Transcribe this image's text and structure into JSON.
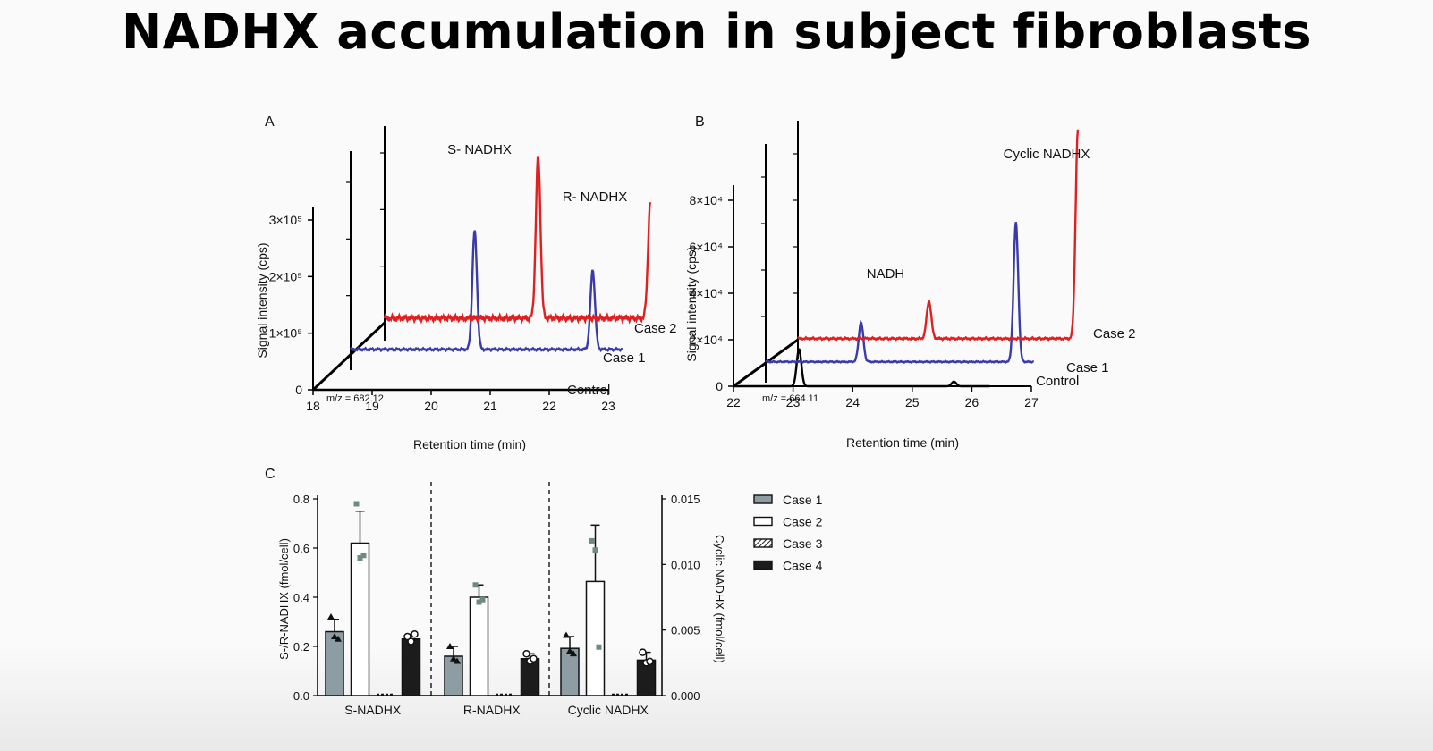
{
  "slide": {
    "title": "NADHX accumulation in subject fibroblasts"
  },
  "panels": {
    "A": {
      "letter": "A",
      "ylabel": "Signal intensity (cps)",
      "xlabel": "Retention time (min)",
      "y_ticks": [
        "0",
        "1×10⁵",
        "2×10⁵",
        "3×10⁵"
      ],
      "x_ticks": [
        "18",
        "19",
        "20",
        "21",
        "22",
        "23"
      ],
      "mz": "m/z = 682.12",
      "peak_labels": [
        "S- NADHX",
        "R- NADHX"
      ],
      "trace_labels": [
        "Case 2",
        "Case 1",
        "Control"
      ]
    },
    "B": {
      "letter": "B",
      "ylabel": "Signal intensity (cps)",
      "xlabel": "Retention time (min)",
      "y_ticks": [
        "0",
        "2×10⁴",
        "4×10⁴",
        "6×10⁴",
        "8×10⁴"
      ],
      "x_ticks": [
        "22",
        "23",
        "24",
        "25",
        "26",
        "27"
      ],
      "mz": "m/z = 664.11",
      "peak_labels": [
        "Cyclic NADHX",
        "NADH"
      ],
      "trace_labels": [
        "Case 2",
        "Case 1",
        "Control"
      ]
    },
    "C": {
      "letter": "C",
      "ylabel_left": "S-/R-NADHX (fmol/cell)",
      "ylabel_right": "Cyclic NADHX (fmol/cell)",
      "y_ticks_left": [
        "0.0",
        "0.2",
        "0.4",
        "0.6",
        "0.8"
      ],
      "y_ticks_right": [
        "0.000",
        "0.005",
        "0.010",
        "0.015"
      ],
      "group_labels": [
        "S-NADHX",
        "R-NADHX",
        "Cyclic NADHX"
      ],
      "legend": [
        "Case 1",
        "Case 2",
        "Case 3",
        "Case 4"
      ]
    }
  },
  "chart_data": [
    {
      "type": "line",
      "panel": "A",
      "xlabel": "Retention time (min)",
      "ylabel": "Signal intensity (cps)",
      "xlim": [
        18,
        23
      ],
      "ylim": [
        0,
        300000
      ],
      "annotation": "m/z = 682.12",
      "series": [
        {
          "name": "Control",
          "color": "#000000",
          "baseline": 0,
          "peaks": []
        },
        {
          "name": "Case 1",
          "color": "#3b3ba8",
          "baseline": 5000,
          "peaks": [
            {
              "x": 20.1,
              "y": 210000,
              "label": "S- NADHX"
            },
            {
              "x": 22.1,
              "y": 140000,
              "label": "R- NADHX"
            }
          ]
        },
        {
          "name": "Case 2",
          "color": "#e02020",
          "baseline": 8000,
          "peaks": [
            {
              "x": 20.6,
              "y": 285000,
              "label": "S- NADHX"
            },
            {
              "x": 22.5,
              "y": 205000,
              "label": "R- NADHX"
            }
          ]
        }
      ]
    },
    {
      "type": "line",
      "panel": "B",
      "xlabel": "Retention time (min)",
      "ylabel": "Signal intensity (cps)",
      "xlim": [
        22,
        27
      ],
      "ylim": [
        0,
        80000
      ],
      "annotation": "m/z = 664.11",
      "series": [
        {
          "name": "Control",
          "color": "#000000",
          "baseline": 0,
          "peaks": [
            {
              "x": 23.1,
              "y": 16000
            },
            {
              "x": 25.7,
              "y": 2000
            }
          ]
        },
        {
          "name": "Case 1",
          "color": "#3b3ba8",
          "baseline": 500,
          "peaks": [
            {
              "x": 23.6,
              "y": 17000,
              "label": "NADH"
            },
            {
              "x": 26.2,
              "y": 60000,
              "label": "Cyclic NADHX"
            }
          ]
        },
        {
          "name": "Case 2",
          "color": "#e02020",
          "baseline": 500,
          "peaks": [
            {
              "x": 24.2,
              "y": 16000,
              "label": "NADH"
            },
            {
              "x": 26.7,
              "y": 90000,
              "label": "Cyclic NADHX"
            }
          ]
        }
      ]
    },
    {
      "type": "bar",
      "panel": "C",
      "categories": [
        "S-NADHX",
        "R-NADHX",
        "Cyclic NADHX"
      ],
      "ylim_left": [
        0,
        0.8
      ],
      "ylim_right": [
        0,
        0.015
      ],
      "series": [
        {
          "name": "Case 1",
          "fill": "#8e9ca4",
          "values": [
            0.26,
            0.16,
            0.0036
          ],
          "err": [
            0.05,
            0.04,
            0.0009
          ],
          "points": [
            [
              0.32,
              0.24,
              0.23
            ],
            [
              0.2,
              0.15,
              0.14
            ],
            [
              0.0046,
              0.0034,
              0.0032
            ]
          ]
        },
        {
          "name": "Case 2",
          "fill": "#ffffff",
          "values": [
            0.62,
            0.4,
            0.0087
          ],
          "err": [
            0.13,
            0.05,
            0.0043
          ],
          "points": [
            [
              0.78,
              0.56,
              0.57
            ],
            [
              0.45,
              0.38,
              0.39
            ],
            [
              0.0118,
              0.0111,
              0.0037
            ]
          ]
        },
        {
          "name": "Case 3",
          "fill": "#ffffff",
          "pattern": "hatched",
          "values": [
            0.0,
            0.0,
            0.0
          ],
          "err": [
            0,
            0,
            0
          ],
          "points": [
            [
              0,
              0,
              0
            ],
            [
              0,
              0,
              0
            ],
            [
              0,
              0,
              0
            ]
          ]
        },
        {
          "name": "Case 4",
          "fill": "#1c1c1c",
          "values": [
            0.23,
            0.15,
            0.0027
          ],
          "err": [
            0.02,
            0.02,
            0.0006
          ],
          "points": [
            [
              0.24,
              0.22,
              0.25
            ],
            [
              0.17,
              0.14,
              0.15
            ],
            [
              0.0033,
              0.0025,
              0.0026
            ]
          ]
        }
      ]
    }
  ]
}
